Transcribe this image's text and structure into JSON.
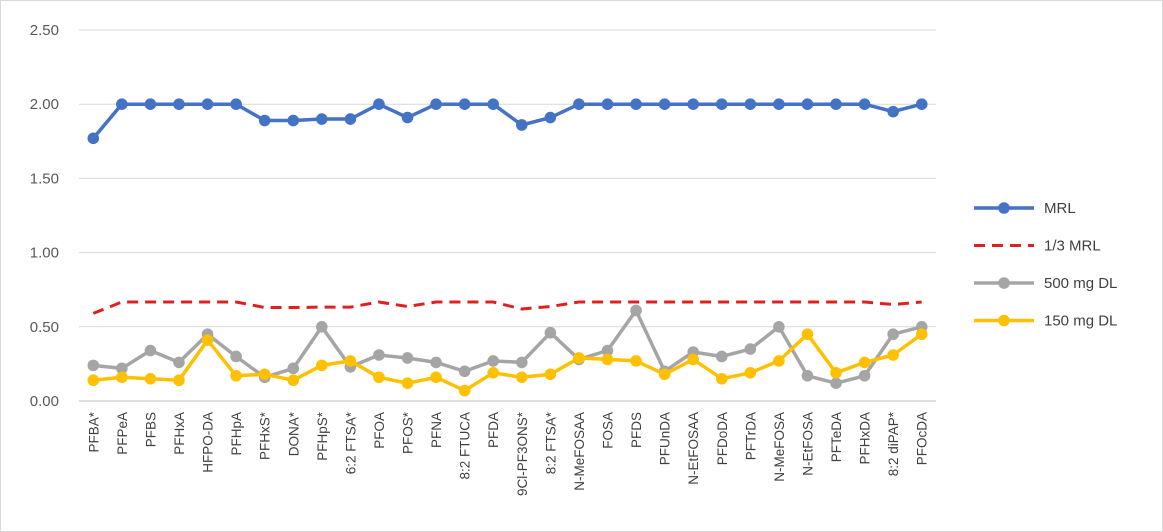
{
  "chart_data": {
    "type": "line",
    "title": "",
    "xlabel": "",
    "ylabel": "",
    "ylim": [
      0,
      2.5
    ],
    "y_ticks": [
      "0.00",
      "0.50",
      "1.00",
      "1.50",
      "2.00",
      "2.50"
    ],
    "grid": "horizontal",
    "legend_position": "right",
    "categories": [
      "PFBA*",
      "PFPeA",
      "PFBS",
      "PFHxA",
      "HFPO-DA",
      "PFHpA",
      "PFHxS*",
      "DONA*",
      "PFHpS*",
      "6:2 FTSA*",
      "PFOA",
      "PFOS*",
      "PFNA",
      "8:2 FTUCA",
      "PFDA",
      "9Cl-PF3ONS*",
      "8:2 FTSA*",
      "N-MeFOSAA",
      "FOSA",
      "PFDS",
      "PFUnDA",
      "N-EtFOSAA",
      "PFDoDA",
      "PFTrDA",
      "N-MeFOSA",
      "N-EtFOSA",
      "PFTeDA",
      "PFHxDA",
      "8:2 diPAP*",
      "PFOcDA"
    ],
    "series": [
      {
        "name": "MRL",
        "color": "#4472C4",
        "style": "solid-markers",
        "values": [
          1.77,
          2.0,
          2.0,
          2.0,
          2.0,
          2.0,
          1.89,
          1.89,
          1.9,
          1.9,
          2.0,
          1.91,
          2.0,
          2.0,
          2.0,
          1.86,
          1.91,
          2.0,
          2.0,
          2.0,
          2.0,
          2.0,
          2.0,
          2.0,
          2.0,
          2.0,
          2.0,
          2.0,
          1.95,
          2.0
        ]
      },
      {
        "name": "1/3 MRL",
        "color": "#E02020",
        "style": "dashed",
        "values": [
          0.59,
          0.667,
          0.667,
          0.667,
          0.667,
          0.667,
          0.63,
          0.63,
          0.633,
          0.633,
          0.667,
          0.637,
          0.667,
          0.667,
          0.667,
          0.62,
          0.637,
          0.667,
          0.667,
          0.667,
          0.667,
          0.667,
          0.667,
          0.667,
          0.667,
          0.667,
          0.667,
          0.667,
          0.65,
          0.667
        ]
      },
      {
        "name": "500 mg DL",
        "color": "#A5A5A5",
        "style": "solid-markers",
        "values": [
          0.24,
          0.22,
          0.34,
          0.26,
          0.45,
          0.3,
          0.16,
          0.22,
          0.5,
          0.23,
          0.31,
          0.29,
          0.26,
          0.2,
          0.27,
          0.26,
          0.46,
          0.28,
          0.34,
          0.61,
          0.2,
          0.33,
          0.3,
          0.35,
          0.5,
          0.17,
          0.12,
          0.17,
          0.45,
          0.5
        ]
      },
      {
        "name": "150 mg DL",
        "color": "#FFC000",
        "style": "solid-markers",
        "values": [
          0.14,
          0.16,
          0.15,
          0.14,
          0.41,
          0.17,
          0.18,
          0.14,
          0.24,
          0.27,
          0.16,
          0.12,
          0.16,
          0.07,
          0.19,
          0.16,
          0.18,
          0.29,
          0.28,
          0.27,
          0.18,
          0.28,
          0.15,
          0.19,
          0.27,
          0.45,
          0.19,
          0.26,
          0.31,
          0.45
        ]
      }
    ]
  }
}
